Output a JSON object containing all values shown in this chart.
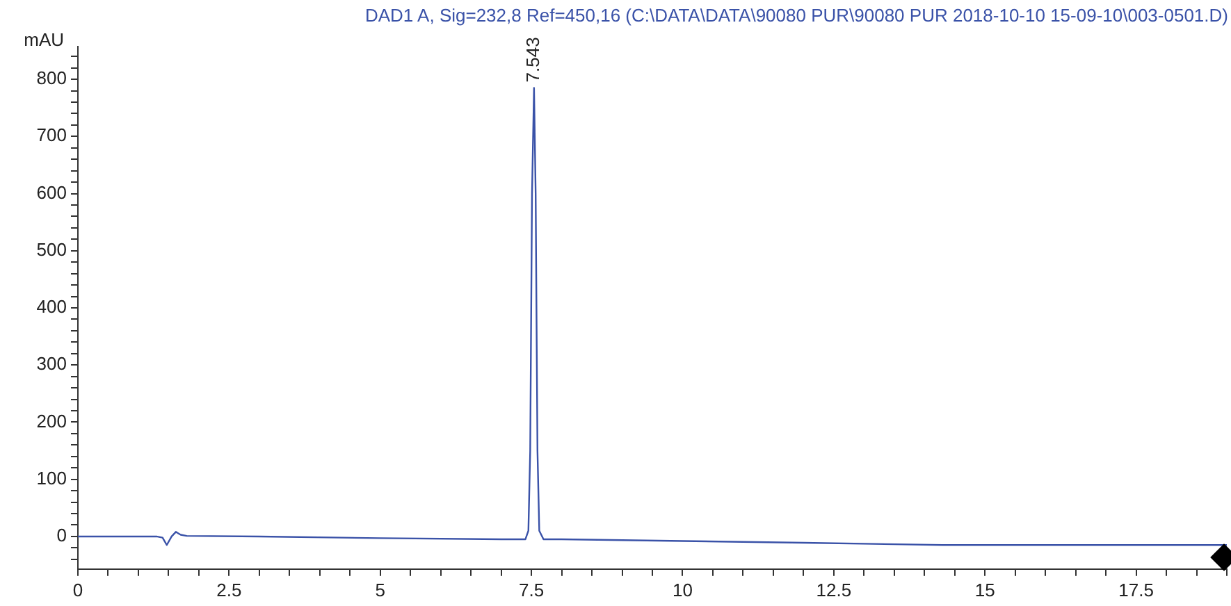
{
  "chart_data": {
    "type": "line",
    "title": "DAD1 A, Sig=232,8 Ref=450,16 (C:\\DATA\\DATA\\90080 PUR\\90080 PUR 2018-10-10 15-09-10\\003-0501.D)",
    "ylabel": "mAU",
    "series": [
      {
        "color": "#3a52a8",
        "x": [
          0,
          1.3,
          1.4,
          1.47,
          1.55,
          1.62,
          1.7,
          1.8,
          3,
          5,
          7,
          7.4,
          7.45,
          7.48,
          7.51,
          7.543,
          7.57,
          7.6,
          7.63,
          7.7,
          8,
          10,
          12,
          14.3,
          19
        ],
        "values": [
          0,
          0,
          -2,
          -15,
          0,
          8,
          3,
          1,
          0,
          -3,
          -5,
          -5,
          10,
          150,
          600,
          785,
          600,
          150,
          10,
          -5,
          -5,
          -8,
          -11,
          -15,
          -15
        ]
      }
    ],
    "annotations": [
      {
        "text": "7.543",
        "x": 7.543,
        "y": 785
      }
    ],
    "xlim": [
      0,
      19
    ],
    "ylim": [
      -57,
      857
    ],
    "xticks": [
      {
        "value": 0,
        "label": "0"
      },
      {
        "value": 0.5,
        "label": null
      },
      {
        "value": 1,
        "label": null
      },
      {
        "value": 1.5,
        "label": null
      },
      {
        "value": 2,
        "label": null
      },
      2.5,
      {
        "value": 3,
        "label": null
      },
      {
        "value": 3.5,
        "label": null
      },
      {
        "value": 4,
        "label": null
      },
      {
        "value": 4.5,
        "label": null
      },
      5,
      {
        "value": 5.5,
        "label": null
      },
      {
        "value": 6,
        "label": null
      },
      {
        "value": 6.5,
        "label": null
      },
      {
        "value": 7,
        "label": null
      },
      7.5,
      {
        "value": 8,
        "label": null
      },
      {
        "value": 8.5,
        "label": null
      },
      {
        "value": 9,
        "label": null
      },
      {
        "value": 9.5,
        "label": null
      },
      10,
      {
        "value": 10.5,
        "label": null
      },
      {
        "value": 11,
        "label": null
      },
      {
        "value": 11.5,
        "label": null
      },
      {
        "value": 12,
        "label": null
      },
      12.5,
      {
        "value": 13,
        "label": null
      },
      {
        "value": 13.5,
        "label": null
      },
      {
        "value": 14,
        "label": null
      },
      {
        "value": 14.5,
        "label": null
      },
      15,
      {
        "value": 15.5,
        "label": null
      },
      {
        "value": 16,
        "label": null
      },
      {
        "value": 16.5,
        "label": null
      },
      {
        "value": 17,
        "label": null
      },
      17.5,
      {
        "value": 18,
        "label": null
      },
      {
        "value": 18.5,
        "label": null
      },
      {
        "value": 19,
        "label": null
      }
    ],
    "yticks": [
      {
        "value": -40,
        "label": null
      },
      {
        "value": -20,
        "label": null
      },
      0,
      {
        "value": 20,
        "label": null
      },
      {
        "value": 40,
        "label": null
      },
      {
        "value": 60,
        "label": null
      },
      {
        "value": 80,
        "label": null
      },
      100,
      {
        "value": 120,
        "label": null
      },
      {
        "value": 140,
        "label": null
      },
      {
        "value": 160,
        "label": null
      },
      {
        "value": 180,
        "label": null
      },
      200,
      {
        "value": 220,
        "label": null
      },
      {
        "value": 240,
        "label": null
      },
      {
        "value": 260,
        "label": null
      },
      {
        "value": 280,
        "label": null
      },
      300,
      {
        "value": 320,
        "label": null
      },
      {
        "value": 340,
        "label": null
      },
      {
        "value": 360,
        "label": null
      },
      {
        "value": 380,
        "label": null
      },
      400,
      {
        "value": 420,
        "label": null
      },
      {
        "value": 440,
        "label": null
      },
      {
        "value": 460,
        "label": null
      },
      {
        "value": 480,
        "label": null
      },
      500,
      {
        "value": 520,
        "label": null
      },
      {
        "value": 540,
        "label": null
      },
      {
        "value": 560,
        "label": null
      },
      {
        "value": 580,
        "label": null
      },
      600,
      {
        "value": 620,
        "label": null
      },
      {
        "value": 640,
        "label": null
      },
      {
        "value": 660,
        "label": null
      },
      {
        "value": 680,
        "label": null
      },
      700,
      {
        "value": 720,
        "label": null
      },
      {
        "value": 740,
        "label": null
      },
      {
        "value": 760,
        "label": null
      },
      {
        "value": 780,
        "label": null
      },
      800,
      {
        "value": 820,
        "label": null
      },
      {
        "value": 840,
        "label": null
      }
    ],
    "grid": false,
    "legend": false,
    "marker": "none",
    "line_style": "solid"
  }
}
